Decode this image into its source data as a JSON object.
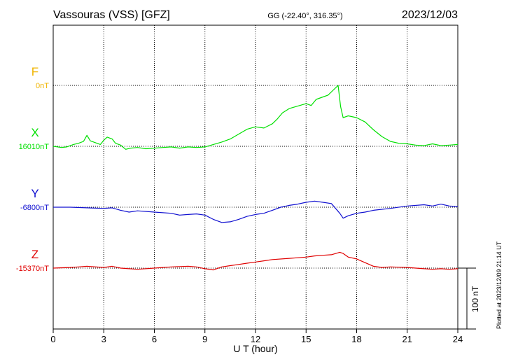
{
  "header": {
    "station": "Vassouras (VSS)  [GFZ]",
    "coords": "GG (-22.40°, 316.35°)",
    "date": "2023/12/03"
  },
  "footer_note": "Plotted at 2023/12/09 21:14 UT",
  "chart_data": {
    "type": "line",
    "xlabel": "U T (hour)",
    "xlim": [
      0,
      24
    ],
    "x_ticks": [
      "0",
      "3",
      "6",
      "9",
      "12",
      "15",
      "18",
      "21",
      "24"
    ],
    "grid": true,
    "scale_bar": "100 nT",
    "series": [
      {
        "name": "F",
        "baseline_label": "0nT",
        "color": "#f0b400",
        "x": [],
        "values": []
      },
      {
        "name": "X",
        "baseline_label": "16010nT",
        "color": "#00e000",
        "x": [
          0,
          0.5,
          0.8,
          1.2,
          1.5,
          1.8,
          2,
          2.2,
          2.5,
          2.8,
          3,
          3.2,
          3.5,
          3.7,
          4,
          4.3,
          4.6,
          5,
          5.5,
          6,
          6.5,
          7,
          7.5,
          8,
          8.5,
          9,
          9.5,
          10,
          10.5,
          11,
          11.5,
          12,
          12.5,
          13,
          13.3,
          13.6,
          14,
          14.5,
          15,
          15.3,
          15.6,
          16,
          16.3,
          16.6,
          16.9,
          17.05,
          17.2,
          17.5,
          18,
          18.5,
          19,
          19.5,
          20,
          20.5,
          21,
          21.5,
          22,
          22.5,
          23,
          23.5,
          24
        ],
        "values": [
          0,
          -2,
          -1,
          3,
          5,
          8,
          18,
          9,
          6,
          3,
          10,
          15,
          12,
          5,
          2,
          -5,
          -3,
          -2,
          -4,
          -3,
          -2,
          -1,
          -3,
          -1,
          -2,
          -1,
          3,
          7,
          12,
          20,
          28,
          32,
          30,
          37,
          45,
          55,
          62,
          66,
          70,
          67,
          77,
          81,
          84,
          92,
          100,
          65,
          47,
          50,
          47,
          40,
          27,
          16,
          8,
          5,
          4,
          2,
          1,
          4,
          1,
          2,
          3
        ]
      },
      {
        "name": "Y",
        "baseline_label": "-6800nT",
        "color": "#1010d0",
        "x": [
          0,
          1,
          2,
          3,
          3.5,
          4,
          4.5,
          5,
          6,
          7,
          7.5,
          8,
          8.5,
          9,
          9.5,
          10,
          10.5,
          11,
          11.5,
          12,
          12.5,
          13,
          13.5,
          14,
          14.5,
          15,
          15.5,
          16,
          16.5,
          17,
          17.2,
          17.5,
          18,
          18.5,
          19,
          20,
          21,
          22,
          22.5,
          23,
          23.5,
          24
        ],
        "values": [
          0,
          0,
          -1,
          -2,
          -1,
          -5,
          -8,
          -6,
          -8,
          -10,
          -13,
          -12,
          -11,
          -13,
          -20,
          -25,
          -24,
          -20,
          -15,
          -12,
          -10,
          -5,
          0,
          3,
          5,
          8,
          10,
          8,
          6,
          -10,
          -18,
          -14,
          -10,
          -8,
          -5,
          -2,
          2,
          4,
          2,
          5,
          2,
          1
        ]
      },
      {
        "name": "Z",
        "baseline_label": "-15370nT",
        "color": "#e00000",
        "x": [
          0,
          1,
          1.5,
          2,
          3,
          3.5,
          4,
          4.5,
          5,
          6,
          7,
          8,
          8.5,
          9,
          9.5,
          10,
          10.5,
          11,
          11.5,
          12,
          12.5,
          13,
          14,
          14.5,
          15,
          15.5,
          16,
          16.5,
          17,
          17.2,
          17.5,
          18,
          18.5,
          19,
          19.5,
          20,
          21,
          22,
          22.5,
          23,
          23.5,
          24
        ],
        "values": [
          0,
          1,
          2,
          3,
          1,
          3,
          0,
          -1,
          -2,
          0,
          2,
          3,
          2,
          -1,
          -3,
          2,
          4,
          6,
          8,
          10,
          12,
          14,
          16,
          17,
          18,
          20,
          21,
          22,
          26,
          24,
          18,
          15,
          9,
          3,
          1,
          2,
          1,
          -1,
          -2,
          -1,
          -2,
          -1
        ]
      }
    ]
  }
}
